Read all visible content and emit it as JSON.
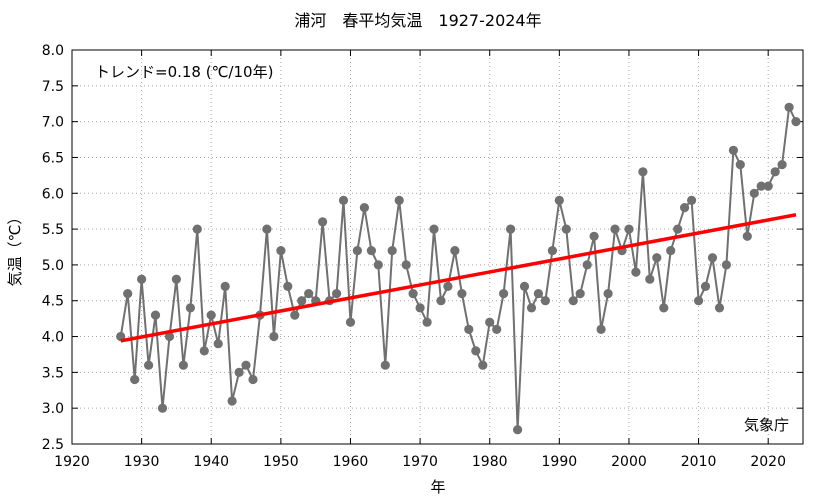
{
  "chart_data": {
    "type": "line",
    "title": "浦河　春平均気温　1927-2024年",
    "xlabel": "年",
    "ylabel": "気温（℃）",
    "xlim": [
      1920,
      2025
    ],
    "ylim": [
      2.5,
      8.0
    ],
    "x_ticks": [
      1920,
      1930,
      1940,
      1950,
      1960,
      1970,
      1980,
      1990,
      2000,
      2010,
      2020
    ],
    "y_ticks": [
      "2.5",
      "3.0",
      "3.5",
      "4.0",
      "4.5",
      "5.0",
      "5.5",
      "6.0",
      "6.5",
      "7.0",
      "7.5",
      "8.0"
    ],
    "grid": true,
    "trend_label": "トレンド=0.18 (℃/10年)",
    "source_label": "気象庁",
    "series": [
      {
        "name": "春平均気温",
        "color": "#707070",
        "x": [
          1927,
          1928,
          1929,
          1930,
          1931,
          1932,
          1933,
          1934,
          1935,
          1936,
          1937,
          1938,
          1939,
          1940,
          1941,
          1942,
          1943,
          1944,
          1945,
          1946,
          1947,
          1948,
          1949,
          1950,
          1951,
          1952,
          1953,
          1954,
          1955,
          1956,
          1957,
          1958,
          1959,
          1960,
          1961,
          1962,
          1963,
          1964,
          1965,
          1966,
          1967,
          1968,
          1969,
          1970,
          1971,
          1972,
          1973,
          1974,
          1975,
          1976,
          1977,
          1978,
          1979,
          1980,
          1981,
          1982,
          1983,
          1984,
          1985,
          1986,
          1987,
          1988,
          1989,
          1990,
          1991,
          1992,
          1993,
          1994,
          1995,
          1996,
          1997,
          1998,
          1999,
          2000,
          2001,
          2002,
          2003,
          2004,
          2005,
          2006,
          2007,
          2008,
          2009,
          2010,
          2011,
          2012,
          2013,
          2014,
          2015,
          2016,
          2017,
          2018,
          2019,
          2020,
          2021,
          2022,
          2023,
          2024
        ],
        "values": [
          4.0,
          4.6,
          3.4,
          4.8,
          3.6,
          4.3,
          3.0,
          4.0,
          4.8,
          3.6,
          4.4,
          5.5,
          3.8,
          4.3,
          3.9,
          4.7,
          3.1,
          3.5,
          3.6,
          3.4,
          4.3,
          5.5,
          4.0,
          5.2,
          4.7,
          4.3,
          4.5,
          4.6,
          4.5,
          5.6,
          4.5,
          4.6,
          5.9,
          4.2,
          5.2,
          5.8,
          5.2,
          5.0,
          3.6,
          5.2,
          5.9,
          5.0,
          4.6,
          4.4,
          4.2,
          5.5,
          4.5,
          4.7,
          5.2,
          4.6,
          4.1,
          3.8,
          3.6,
          4.2,
          4.1,
          4.6,
          5.5,
          2.7,
          4.7,
          4.4,
          4.6,
          4.5,
          5.2,
          5.9,
          5.5,
          4.5,
          4.6,
          5.0,
          5.4,
          4.1,
          4.6,
          5.5,
          5.2,
          5.5,
          4.9,
          6.3,
          4.8,
          5.1,
          4.4,
          5.2,
          5.5,
          5.8,
          5.9,
          4.5,
          4.7,
          5.1,
          4.4,
          5.0,
          6.6,
          6.4,
          5.4,
          6.0,
          6.1,
          6.1,
          6.3,
          6.4,
          7.2,
          7.0
        ]
      }
    ],
    "trend": {
      "color": "#ff0000",
      "x": [
        1927,
        2024
      ],
      "values": [
        3.94,
        5.7
      ]
    }
  }
}
